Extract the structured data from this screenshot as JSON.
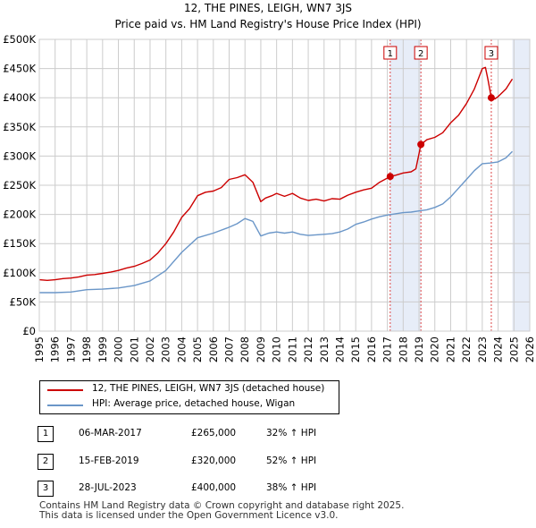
{
  "chart_data": {
    "type": "line",
    "title": "12, THE PINES, LEIGH, WN7 3JS",
    "subtitle": "Price paid vs. HM Land Registry's House Price Index (HPI)",
    "xlim": [
      1995,
      2026
    ],
    "ylim": [
      0,
      500000
    ],
    "x_ticks": [
      1995,
      1996,
      1997,
      1998,
      1999,
      2000,
      2001,
      2002,
      2003,
      2004,
      2005,
      2006,
      2007,
      2008,
      2009,
      2010,
      2011,
      2012,
      2013,
      2014,
      2015,
      2016,
      2017,
      2018,
      2019,
      2020,
      2021,
      2022,
      2023,
      2024,
      2025,
      2026
    ],
    "y_ticks": [
      {
        "value": 0,
        "label": "£0"
      },
      {
        "value": 50000,
        "label": "£50K"
      },
      {
        "value": 100000,
        "label": "£100K"
      },
      {
        "value": 150000,
        "label": "£150K"
      },
      {
        "value": 200000,
        "label": "£200K"
      },
      {
        "value": 250000,
        "label": "£250K"
      },
      {
        "value": 300000,
        "label": "£300K"
      },
      {
        "value": 350000,
        "label": "£350K"
      },
      {
        "value": 400000,
        "label": "£400K"
      },
      {
        "value": 450000,
        "label": "£450K"
      },
      {
        "value": 500000,
        "label": "£500K"
      }
    ],
    "grid": true,
    "shaded_ranges": [
      [
        2017.18,
        2019.12
      ],
      [
        2024.9,
        2026
      ]
    ],
    "series": [
      {
        "name": "12, THE PINES, LEIGH, WN7 3JS (detached house)",
        "color": "#cc0000",
        "x": [
          1995,
          1995.5,
          1996,
          1996.5,
          1997,
          1997.5,
          1998,
          1998.5,
          1999,
          1999.5,
          2000,
          2000.5,
          2001,
          2001.5,
          2002,
          2002.5,
          2003,
          2003.5,
          2004,
          2004.5,
          2005,
          2005.5,
          2006,
          2006.5,
          2007,
          2007.5,
          2008,
          2008.5,
          2009,
          2009.3,
          2009.7,
          2010,
          2010.5,
          2011,
          2011.5,
          2012,
          2012.5,
          2013,
          2013.5,
          2014,
          2014.5,
          2015,
          2015.5,
          2016,
          2016.5,
          2017.18,
          2017.5,
          2018,
          2018.5,
          2018.8,
          2019.12,
          2019.5,
          2020,
          2020.5,
          2021,
          2021.5,
          2022,
          2022.5,
          2023,
          2023.2,
          2023.35,
          2023.57,
          2023.8,
          2024,
          2024.5,
          2024.9
        ],
        "values": [
          88000,
          87000,
          88000,
          90000,
          91000,
          93000,
          96000,
          97000,
          99000,
          101000,
          104000,
          108000,
          111000,
          116000,
          122000,
          134000,
          150000,
          170000,
          195000,
          210000,
          232000,
          238000,
          240000,
          246000,
          260000,
          263000,
          268000,
          255000,
          222000,
          228000,
          232000,
          236000,
          231000,
          236000,
          228000,
          224000,
          226000,
          223000,
          227000,
          226000,
          233000,
          238000,
          242000,
          245000,
          255000,
          265000,
          267000,
          271000,
          273000,
          278000,
          320000,
          328000,
          332000,
          340000,
          357000,
          370000,
          390000,
          415000,
          450000,
          452000,
          432000,
          400000,
          398000,
          402000,
          415000,
          432000
        ]
      },
      {
        "name": "HPI: Average price, detached house, Wigan",
        "color": "#6a96c8",
        "x": [
          1995,
          1996,
          1997,
          1998,
          1999,
          2000,
          2001,
          2002,
          2003,
          2004,
          2005,
          2006,
          2007,
          2007.5,
          2008,
          2008.5,
          2009,
          2009.5,
          2010,
          2010.5,
          2011,
          2011.5,
          2012,
          2012.5,
          2013,
          2013.5,
          2014,
          2014.5,
          2015,
          2015.5,
          2016,
          2016.5,
          2017,
          2017.5,
          2018,
          2018.5,
          2019,
          2019.5,
          2020,
          2020.5,
          2021,
          2021.5,
          2022,
          2022.5,
          2023,
          2023.5,
          2024,
          2024.5,
          2024.9
        ],
        "values": [
          66000,
          66000,
          67000,
          71000,
          72000,
          74000,
          78000,
          86000,
          104000,
          135000,
          160000,
          168000,
          178000,
          184000,
          193000,
          188000,
          163000,
          168000,
          170000,
          168000,
          170000,
          166000,
          164000,
          165000,
          166000,
          167000,
          170000,
          175000,
          183000,
          187000,
          192000,
          196000,
          199000,
          201000,
          203000,
          204000,
          206000,
          208000,
          212000,
          218000,
          230000,
          245000,
          260000,
          275000,
          287000,
          288000,
          290000,
          297000,
          308000
        ]
      }
    ],
    "markers": [
      {
        "label": "1",
        "x": 2017.18,
        "y": 265000
      },
      {
        "label": "2",
        "x": 2019.12,
        "y": 320000
      },
      {
        "label": "3",
        "x": 2023.57,
        "y": 400000
      }
    ]
  },
  "legend": {
    "red_label": "12, THE PINES, LEIGH, WN7 3JS (detached house)",
    "blue_label": "HPI: Average price, detached house, Wigan"
  },
  "sales": [
    {
      "num": "1",
      "date": "06-MAR-2017",
      "price": "£265,000",
      "hpi": "32% ↑ HPI"
    },
    {
      "num": "2",
      "date": "15-FEB-2019",
      "price": "£320,000",
      "hpi": "52% ↑ HPI"
    },
    {
      "num": "3",
      "date": "28-JUL-2023",
      "price": "£400,000",
      "hpi": "38% ↑ HPI"
    }
  ],
  "footer": {
    "line1": "Contains HM Land Registry data © Crown copyright and database right 2025.",
    "line2": "This data is licensed under the Open Government Licence v3.0."
  }
}
